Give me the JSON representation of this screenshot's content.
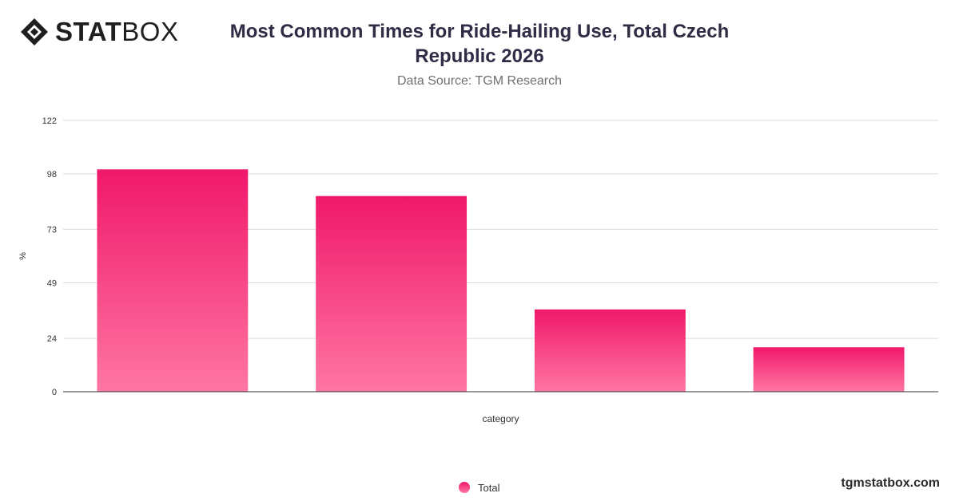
{
  "brand": {
    "logo_strong": "STAT",
    "logo_light": "BOX",
    "site": "tgmstatbox.com",
    "accent": "#f0186a",
    "accent_light": "#ff76a3",
    "logo_color": "#1f1f1f"
  },
  "title": "Most Common Times for Ride-Hailing Use, Total Czech Republic 2026",
  "subtitle": "Data Source: TGM Research",
  "chart_data": {
    "type": "bar",
    "title": "Most Common Times for Ride-Hailing Use, Total Czech Republic 2026",
    "subtitle": "Data Source: TGM Research",
    "xlabel": "category",
    "ylabel": "%",
    "categories": [
      "",
      "",
      "",
      ""
    ],
    "series": [
      {
        "name": "Total",
        "values": [
          100,
          88,
          37,
          20
        ]
      }
    ],
    "yticks": [
      0,
      24,
      49,
      73,
      98,
      122
    ],
    "ylim": [
      0,
      122
    ],
    "grid": true,
    "legend": "bottom-center"
  }
}
